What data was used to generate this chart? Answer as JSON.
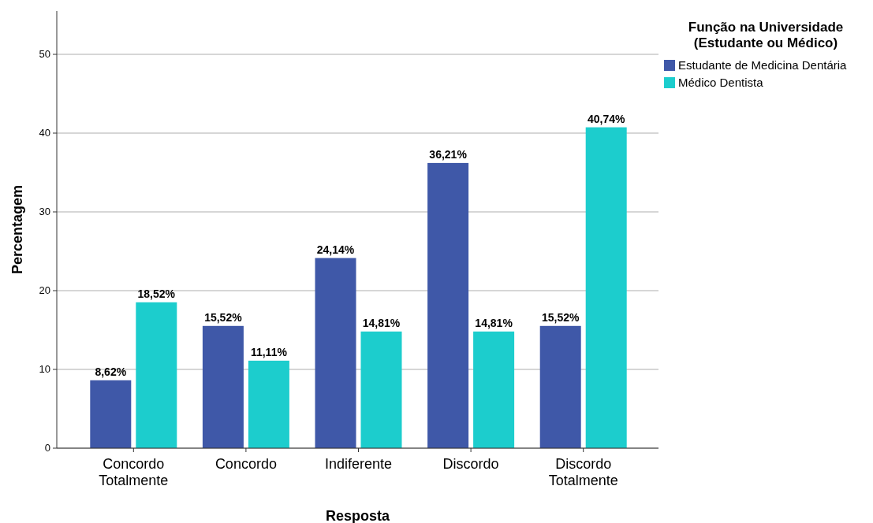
{
  "chart_data": {
    "type": "bar",
    "xlabel": "Resposta",
    "ylabel": "Percentagem",
    "legend_title": "Função na Universidade\n(Estudante ou Médico)",
    "legend": "top right",
    "grid": "y",
    "categories": [
      "Concordo Totalmente",
      "Concordo",
      "Indiferente",
      "Discordo",
      "Discordo Totalmente"
    ],
    "series": [
      {
        "name": "Estudante de Medicina Dentária",
        "color": "#3f58a8",
        "values": [
          8.62,
          15.52,
          24.14,
          36.21,
          15.52
        ],
        "value_labels": [
          "8,62%",
          "15,52%",
          "24,14%",
          "36,21%",
          "15,52%"
        ]
      },
      {
        "name": "Médico Dentista",
        "color": "#1ccdcd",
        "values": [
          18.52,
          11.11,
          14.81,
          14.81,
          40.74
        ],
        "value_labels": [
          "18,52%",
          "11,11%",
          "14,81%",
          "14,81%",
          "40,74%"
        ]
      }
    ],
    "ylim": [
      0,
      55.5
    ],
    "yticks": [
      0,
      10,
      20,
      30,
      40,
      50
    ]
  }
}
